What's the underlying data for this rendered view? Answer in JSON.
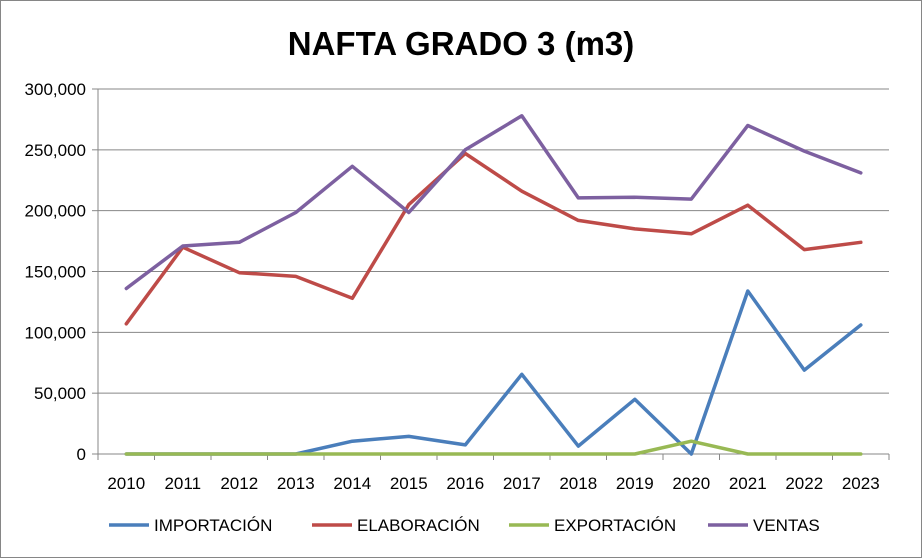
{
  "chart_data": {
    "type": "line",
    "title": "NAFTA GRADO 3 (m3)",
    "xlabel": "",
    "ylabel": "",
    "categories": [
      "2010",
      "2011",
      "2012",
      "2013",
      "2014",
      "2015",
      "2016",
      "2017",
      "2018",
      "2019",
      "2020",
      "2021",
      "2022",
      "2023"
    ],
    "ylim": [
      0,
      300000
    ],
    "yticks": [
      0,
      50000,
      100000,
      150000,
      200000,
      250000,
      300000
    ],
    "ytick_labels": [
      "0",
      "50,000",
      "100,000",
      "150,000",
      "200,000",
      "250,000",
      "300,000"
    ],
    "grid": true,
    "legend_position": "bottom",
    "series": [
      {
        "name": "IMPORTACIÓN",
        "color": "#4A7EBB",
        "values": [
          0,
          0,
          0,
          0,
          10500,
          14500,
          7500,
          65500,
          6500,
          45000,
          0,
          134000,
          69000,
          106000
        ]
      },
      {
        "name": "ELABORACIÓN",
        "color": "#BE4B48",
        "values": [
          107000,
          170000,
          149000,
          146000,
          128000,
          205000,
          247000,
          216000,
          192000,
          185000,
          181000,
          204500,
          168000,
          174000
        ]
      },
      {
        "name": "EXPORTACIÓN",
        "color": "#98B954",
        "values": [
          0,
          0,
          0,
          0,
          0,
          0,
          0,
          0,
          0,
          0,
          10500,
          0,
          0,
          0
        ]
      },
      {
        "name": "VENTAS",
        "color": "#7D60A0",
        "values": [
          136000,
          171000,
          174000,
          198500,
          236500,
          198500,
          250000,
          278000,
          210500,
          211000,
          209500,
          270000,
          249000,
          231000
        ]
      }
    ]
  }
}
